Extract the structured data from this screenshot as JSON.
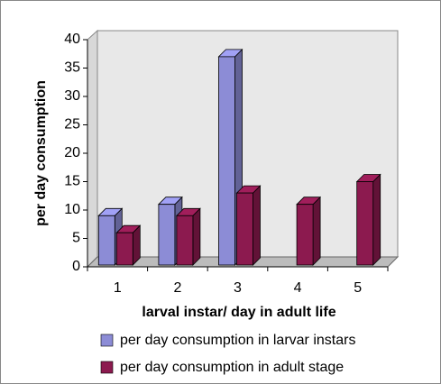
{
  "chart_data": {
    "type": "bar3d",
    "categories": [
      "1",
      "2",
      "3",
      "4",
      "5"
    ],
    "series": [
      {
        "name": "per day consumption in larvar instars",
        "color": "#8c8cd6",
        "values": [
          9,
          11,
          37,
          null,
          null
        ]
      },
      {
        "name": "per day consumption in adult stage",
        "color": "#8c1a4f",
        "values": [
          6,
          9,
          13,
          11,
          15
        ]
      }
    ],
    "ylim": [
      0,
      40
    ],
    "yticks": [
      0,
      5,
      10,
      15,
      20,
      25,
      30,
      35,
      40
    ],
    "ylabel": "per day consumption",
    "xlabel": "larval instar/ day in adult life",
    "grid": false,
    "legend": "bottom"
  }
}
